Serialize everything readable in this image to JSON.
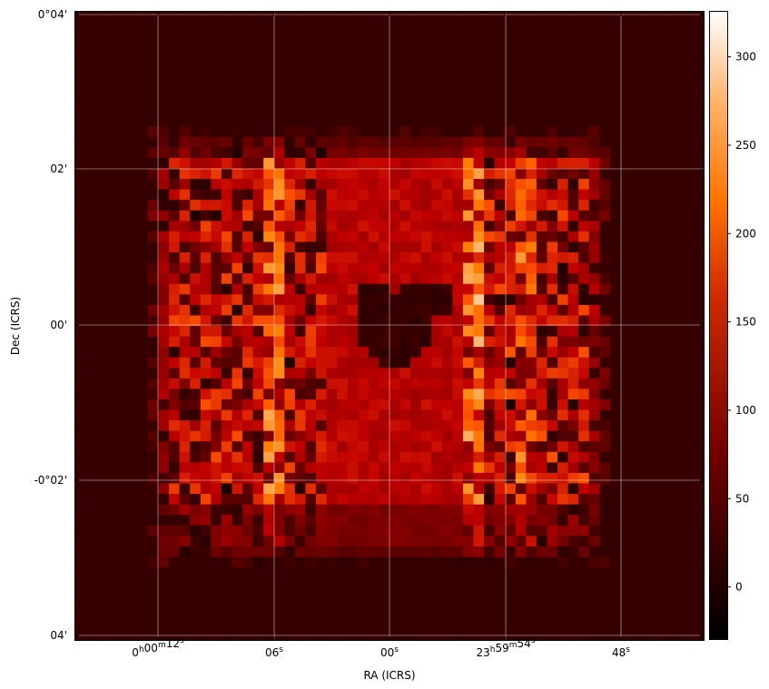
{
  "chart_data": {
    "type": "heatmap",
    "title": "",
    "xlabel": "RA (ICRS)",
    "ylabel": "Dec (ICRS)",
    "colormap": "gist_heat",
    "grid": true,
    "x_ticks": [
      {
        "label": "0h00m12s",
        "parts": [
          {
            "t": "0"
          },
          {
            "t": "h",
            "sup": true
          },
          {
            "t": "00"
          },
          {
            "t": "m",
            "sup": true
          },
          {
            "t": "12"
          },
          {
            "t": "s",
            "sup": true
          }
        ]
      },
      {
        "label": "06s",
        "parts": [
          {
            "t": "06"
          },
          {
            "t": "s",
            "sup": true
          }
        ]
      },
      {
        "label": "00s",
        "parts": [
          {
            "t": "00"
          },
          {
            "t": "s",
            "sup": true
          }
        ]
      },
      {
        "label": "23h59m54s",
        "parts": [
          {
            "t": "23"
          },
          {
            "t": "h",
            "sup": true
          },
          {
            "t": "59"
          },
          {
            "t": "m",
            "sup": true
          },
          {
            "t": "54"
          },
          {
            "t": "s",
            "sup": true
          }
        ]
      },
      {
        "label": "48s",
        "parts": [
          {
            "t": "48"
          },
          {
            "t": "s",
            "sup": true
          }
        ]
      }
    ],
    "y_ticks": [
      "0°04'",
      "02'",
      "00'",
      "-0°02'",
      "04'"
    ],
    "colorbar": {
      "range": [
        -30,
        326
      ],
      "ticks": [
        0,
        50,
        100,
        150,
        200,
        250,
        300
      ]
    },
    "image": {
      "shape": [
        60,
        60
      ],
      "background": 20,
      "hole_value": 10,
      "vmin": -30,
      "vmax": 326
    }
  }
}
